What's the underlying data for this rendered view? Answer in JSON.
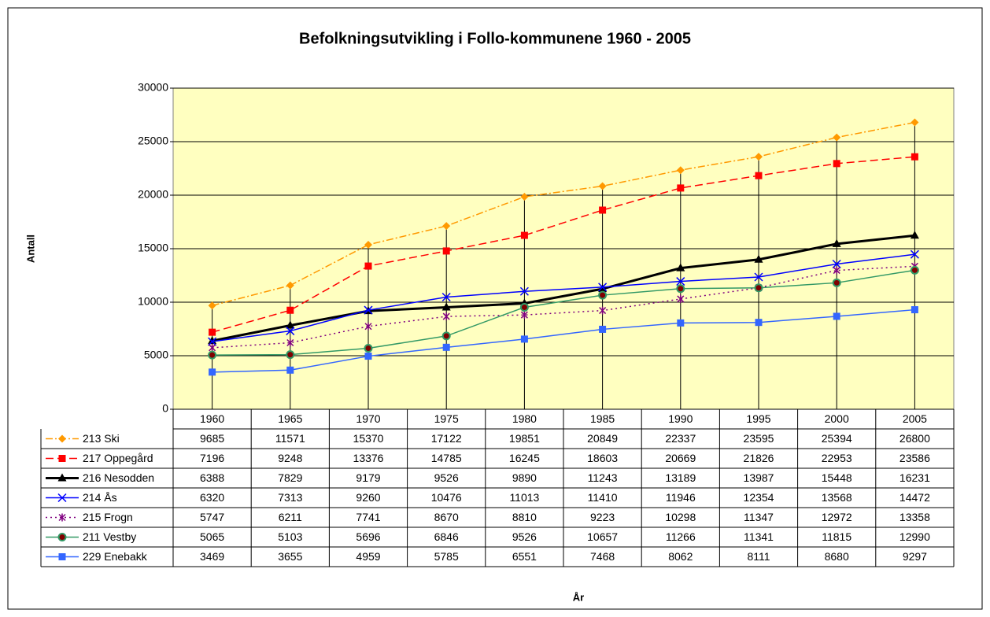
{
  "chart_data": {
    "type": "line",
    "title": "Befolkningsutvikling i Follo-kommunene 1960 - 2005",
    "x_label": "År",
    "y_label": "Antall",
    "categories": [
      "1960",
      "1965",
      "1970",
      "1975",
      "1980",
      "1985",
      "1990",
      "1995",
      "2000",
      "2005"
    ],
    "ylim": [
      0,
      30000
    ],
    "yticks": [
      0,
      5000,
      10000,
      15000,
      20000,
      25000,
      30000
    ],
    "grid": true,
    "series": [
      {
        "name": "213 Ski",
        "color": "#ff9900",
        "marker": "diamond",
        "dash": "dash-dot",
        "values": [
          9685,
          11571,
          15370,
          17122,
          19851,
          20849,
          22337,
          23595,
          25394,
          26800
        ]
      },
      {
        "name": "217 Oppegård",
        "color": "#ff0000",
        "marker": "square",
        "dash": "dash",
        "values": [
          7196,
          9248,
          13376,
          14785,
          16245,
          18603,
          20669,
          21826,
          22953,
          23586
        ]
      },
      {
        "name": "216 Nesodden",
        "color": "#000000",
        "marker": "triangle",
        "dash": "solid-thick",
        "values": [
          6388,
          7829,
          9179,
          9526,
          9890,
          11243,
          13189,
          13987,
          15448,
          16231
        ]
      },
      {
        "name": "214 Ås",
        "color": "#0000ff",
        "marker": "x",
        "dash": "solid",
        "values": [
          6320,
          7313,
          9260,
          10476,
          11013,
          11410,
          11946,
          12354,
          13568,
          14472
        ]
      },
      {
        "name": "215 Frogn",
        "color": "#800080",
        "marker": "star",
        "dash": "dot",
        "values": [
          5747,
          6211,
          7741,
          8670,
          8810,
          9223,
          10298,
          11347,
          12972,
          13358
        ]
      },
      {
        "name": "211 Vestby",
        "color": "#339966",
        "marker": "circle",
        "dash": "solid",
        "values": [
          5065,
          5103,
          5696,
          6846,
          9526,
          10657,
          11266,
          11341,
          11815,
          12990
        ]
      },
      {
        "name": "229 Enebakk",
        "color": "#3366ff",
        "marker": "square",
        "dash": "solid",
        "values": [
          3469,
          3655,
          4959,
          5785,
          6551,
          7468,
          8062,
          8111,
          8680,
          9297
        ]
      }
    ]
  }
}
